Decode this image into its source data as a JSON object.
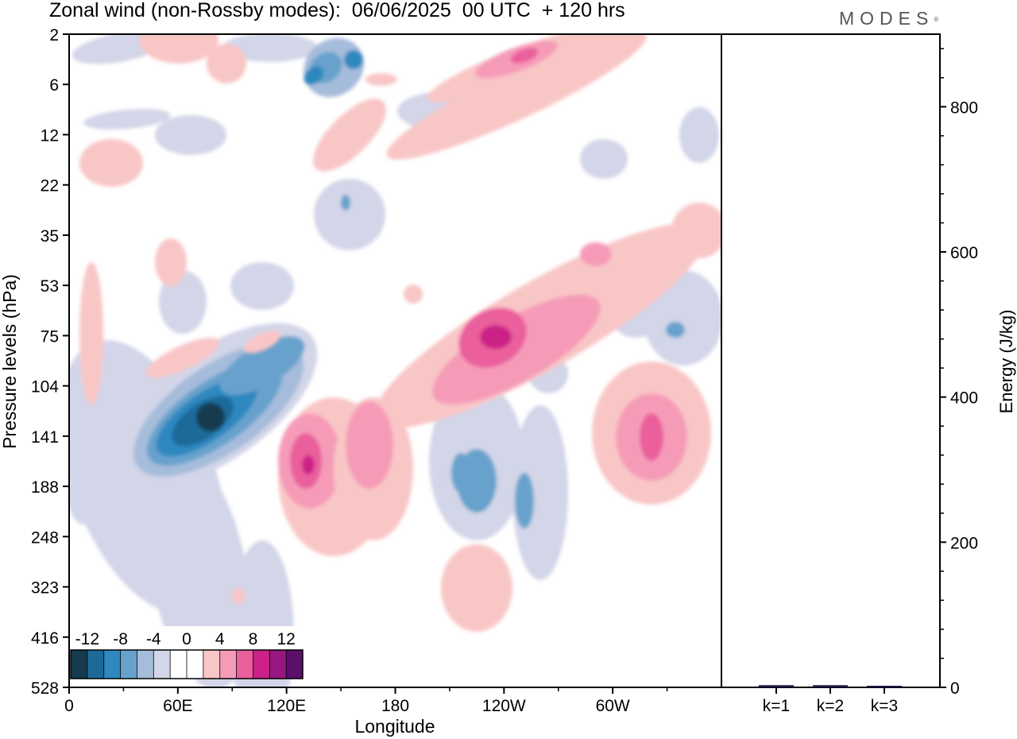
{
  "title": "Zonal wind (non-Rossby modes):  06/06/2025  00 UTC  + 120 hrs",
  "logo": "MODES",
  "chart_data": [
    {
      "type": "heatmap",
      "title": "Zonal wind (non-Rossby modes):  06/06/2025  00 UTC  + 120 hrs",
      "xlabel": "Longitude",
      "ylabel": "Pressure levels (hPa)",
      "x_ticks": [
        "0",
        "60E",
        "120E",
        "180",
        "120W",
        "60W"
      ],
      "x_tick_values": [
        0,
        60,
        120,
        180,
        240,
        300
      ],
      "xlim": [
        0,
        360
      ],
      "y_ticks": [
        "2",
        "6",
        "12",
        "22",
        "35",
        "53",
        "75",
        "104",
        "141",
        "188",
        "248",
        "323",
        "416",
        "528"
      ],
      "y_scale": "level index (top to bottom)",
      "colorbar": {
        "labels": [
          "-12",
          "-8",
          "-4",
          "0",
          "4",
          "8",
          "12"
        ],
        "levels": [
          -14,
          -12,
          -10,
          -8,
          -6,
          -4,
          -2,
          0,
          2,
          4,
          6,
          8,
          10,
          12,
          14
        ],
        "colors": [
          "#153a4f",
          "#1d6a9a",
          "#2f88c0",
          "#68a2cc",
          "#a6bcdb",
          "#d3d5e8",
          "#ffffff",
          "#ffffff",
          "#f9c6c6",
          "#f59bb8",
          "#ea5f9c",
          "#cc2287",
          "#991780",
          "#5a0f6b"
        ]
      },
      "features": [
        {
          "lon": 72,
          "level": "141",
          "value": -14
        },
        {
          "lon": 80,
          "level": "141",
          "value": -14
        },
        {
          "lon": 105,
          "level": "104",
          "value": -10
        },
        {
          "lon": 127,
          "level": "188",
          "value": 8
        },
        {
          "lon": 168,
          "level": "141",
          "value": 6
        },
        {
          "lon": 235,
          "level": "75",
          "value": 10
        },
        {
          "lon": 320,
          "level": "141",
          "value": 8
        },
        {
          "lon": 228,
          "level": "188",
          "value": -8
        },
        {
          "lon": 253,
          "level": "6",
          "value": 8
        },
        {
          "lon": 160,
          "level": "6",
          "value": -6
        }
      ]
    },
    {
      "type": "bar",
      "categories": [
        "k=1",
        "k=2",
        "k=3"
      ],
      "values": [
        3,
        3,
        2
      ],
      "ylabel": "Energy (J/kg)",
      "ylim": [
        0,
        900
      ],
      "y_ticks": [
        "0",
        "200",
        "400",
        "600",
        "800"
      ],
      "bar_color": "#1a1a4a"
    }
  ]
}
